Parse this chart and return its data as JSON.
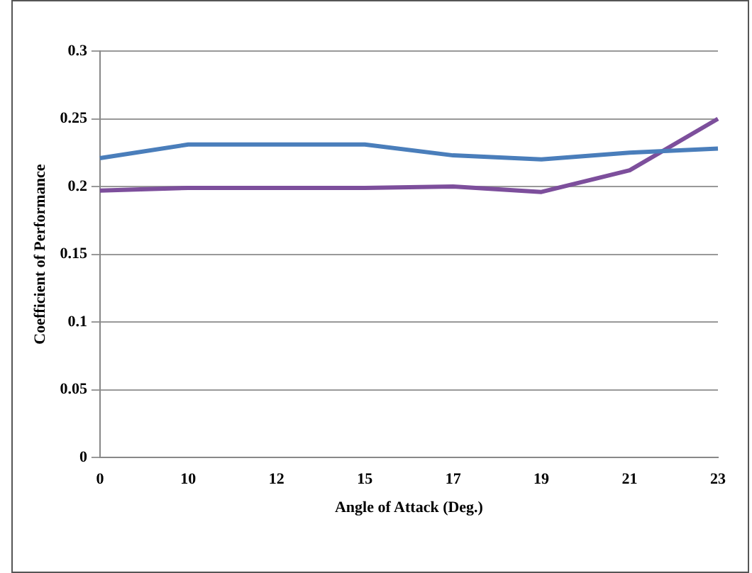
{
  "chart_data": {
    "type": "line",
    "xlabel": "Angle of Attack (Deg.)",
    "ylabel": "Coefficient of Performance",
    "categories": [
      "0",
      "10",
      "12",
      "15",
      "17",
      "19",
      "21",
      "23"
    ],
    "series": [
      {
        "color": "#4a7ebb",
        "values": [
          0.221,
          0.231,
          0.231,
          0.231,
          0.223,
          0.22,
          0.225,
          0.228
        ]
      },
      {
        "color": "#7d4f9c",
        "values": [
          0.197,
          0.199,
          0.199,
          0.199,
          0.2,
          0.196,
          0.212,
          0.25
        ]
      }
    ],
    "ylim": [
      0,
      0.3
    ],
    "yticks": [
      0,
      0.05,
      0.1,
      0.15,
      0.2,
      0.25,
      0.3
    ],
    "grid": "y",
    "legend": false,
    "marker": "none",
    "line_style": "solid"
  }
}
